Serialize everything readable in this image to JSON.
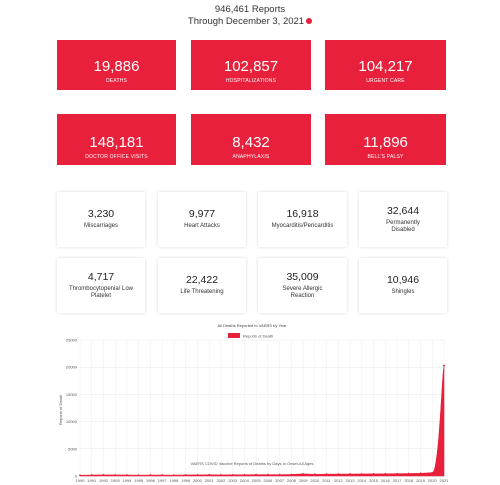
{
  "header": {
    "line1": "946,461 Reports",
    "line2": "Through December 3, 2021"
  },
  "red_cards": [
    {
      "value": "19,886",
      "label": "DEATHS"
    },
    {
      "value": "102,857",
      "label": "HOSPITALIZATIONS"
    },
    {
      "value": "104,217",
      "label": "URGENT CARE"
    },
    {
      "value": "148,181",
      "label": "DOCTOR OFFICE VISITS"
    },
    {
      "value": "8,432",
      "label": "ANAPHYLAXIS"
    },
    {
      "value": "11,896",
      "label": "BELL'S PALSY"
    }
  ],
  "white_cards": [
    {
      "value": "3,230",
      "label": "Miscarriages"
    },
    {
      "value": "9,977",
      "label": "Heart Attacks"
    },
    {
      "value": "16,918",
      "label": "Myocarditis/Pericarditis"
    },
    {
      "value": "32,644",
      "label": "Permanently Disabled"
    },
    {
      "value": "4,717",
      "label": "Thrombocytopenia/ Low Platelet"
    },
    {
      "value": "22,422",
      "label": "Life Threatening"
    },
    {
      "value": "35,009",
      "label": "Severe Allergic Reaction"
    },
    {
      "value": "10,946",
      "label": "Shingles"
    }
  ],
  "colors": {
    "accent": "#e8203c"
  },
  "chart_data": {
    "type": "area",
    "title": "All Deaths Reported to VAERS by Year",
    "ylabel": "Reports of Death",
    "xlabel": "",
    "legend": [
      "Reports of Death"
    ],
    "legend_placement": "top",
    "grid": true,
    "ylim": [
      0,
      25000
    ],
    "yticks": [
      "0",
      "5000",
      "10000",
      "15000",
      "20000",
      "25000"
    ],
    "categories": [
      "1990",
      "1991",
      "1992",
      "1993",
      "1994",
      "1995",
      "1996",
      "1997",
      "1998",
      "1999",
      "2000",
      "2001",
      "2002",
      "2003",
      "2004",
      "2005",
      "2006",
      "2007",
      "2008",
      "2009",
      "2010",
      "2011",
      "2012",
      "2013",
      "2014",
      "2015",
      "2016",
      "2017",
      "2018",
      "2019",
      "2020",
      "2021"
    ],
    "values": [
      140,
      180,
      200,
      190,
      170,
      160,
      170,
      170,
      160,
      190,
      200,
      230,
      200,
      210,
      230,
      240,
      250,
      240,
      280,
      380,
      320,
      330,
      350,
      360,
      370,
      380,
      400,
      420,
      450,
      500,
      600,
      20300
    ],
    "annotation": "VAERS COVID Vaccine Reports of Deaths by Days to Onset-All Ages"
  }
}
